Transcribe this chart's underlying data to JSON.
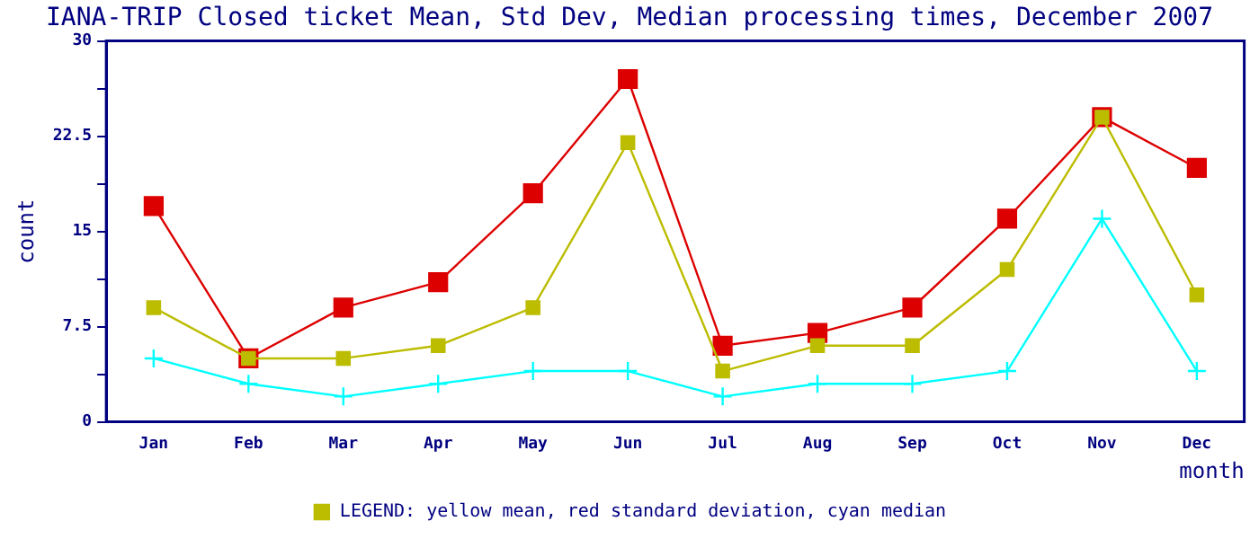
{
  "chart_data": {
    "type": "line",
    "title": "IANA-TRIP Closed ticket Mean, Std Dev, Median processing times, December 2007",
    "xlabel": "month",
    "ylabel": "count",
    "categories": [
      "Jan",
      "Feb",
      "Mar",
      "Apr",
      "May",
      "Jun",
      "Jul",
      "Aug",
      "Sep",
      "Oct",
      "Nov",
      "Dec"
    ],
    "series": [
      {
        "name": "LEGEND: yellow mean, red standard deviation, cyan median",
        "color": "#bcbc00",
        "marker": "square",
        "values": [
          9,
          5,
          5,
          6,
          9,
          22,
          4,
          6,
          6,
          12,
          24,
          10
        ]
      },
      {
        "color": "#dd0000",
        "marker": "square",
        "values": [
          17,
          5,
          9,
          11,
          18,
          27,
          6,
          7,
          9,
          16,
          24,
          20
        ]
      },
      {
        "color": "#00ffff",
        "marker": "cross",
        "values": [
          5,
          3,
          2,
          3,
          4,
          4,
          2,
          3,
          3,
          4,
          16,
          4
        ]
      }
    ],
    "ylim": [
      0,
      30
    ],
    "yticks": [
      0,
      {
        "value": 3.75,
        "label": null
      },
      7.5,
      {
        "value": 11.25,
        "label": null
      },
      15,
      {
        "value": 18.75,
        "label": null
      },
      22.5,
      {
        "value": 26.25,
        "label": null
      },
      30
    ],
    "grid": false,
    "legend": "bottom"
  }
}
